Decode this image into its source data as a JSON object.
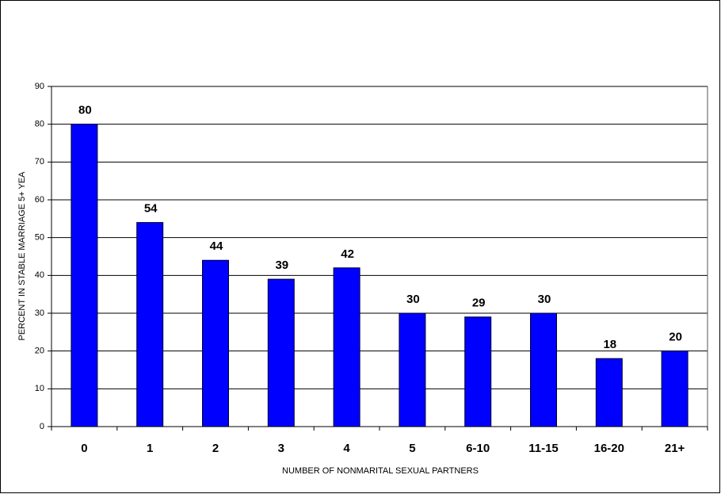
{
  "chart_data": {
    "type": "bar",
    "x_label": "NUMBER OF NONMARITAL SEXUAL PARTNERS",
    "y_label": "PERCENT IN STABLE MARRIAGE 5+ YEA",
    "categories": [
      "0",
      "1",
      "2",
      "3",
      "4",
      "5",
      "6-10",
      "11-15",
      "16-20",
      "21+"
    ],
    "values": [
      80,
      54,
      44,
      39,
      42,
      30,
      29,
      30,
      18,
      20
    ],
    "color": "#0000ff",
    "ylim": [
      0,
      90
    ],
    "yticks": [
      0,
      10,
      20,
      30,
      40,
      50,
      60,
      70,
      80,
      90
    ],
    "grid": true
  }
}
